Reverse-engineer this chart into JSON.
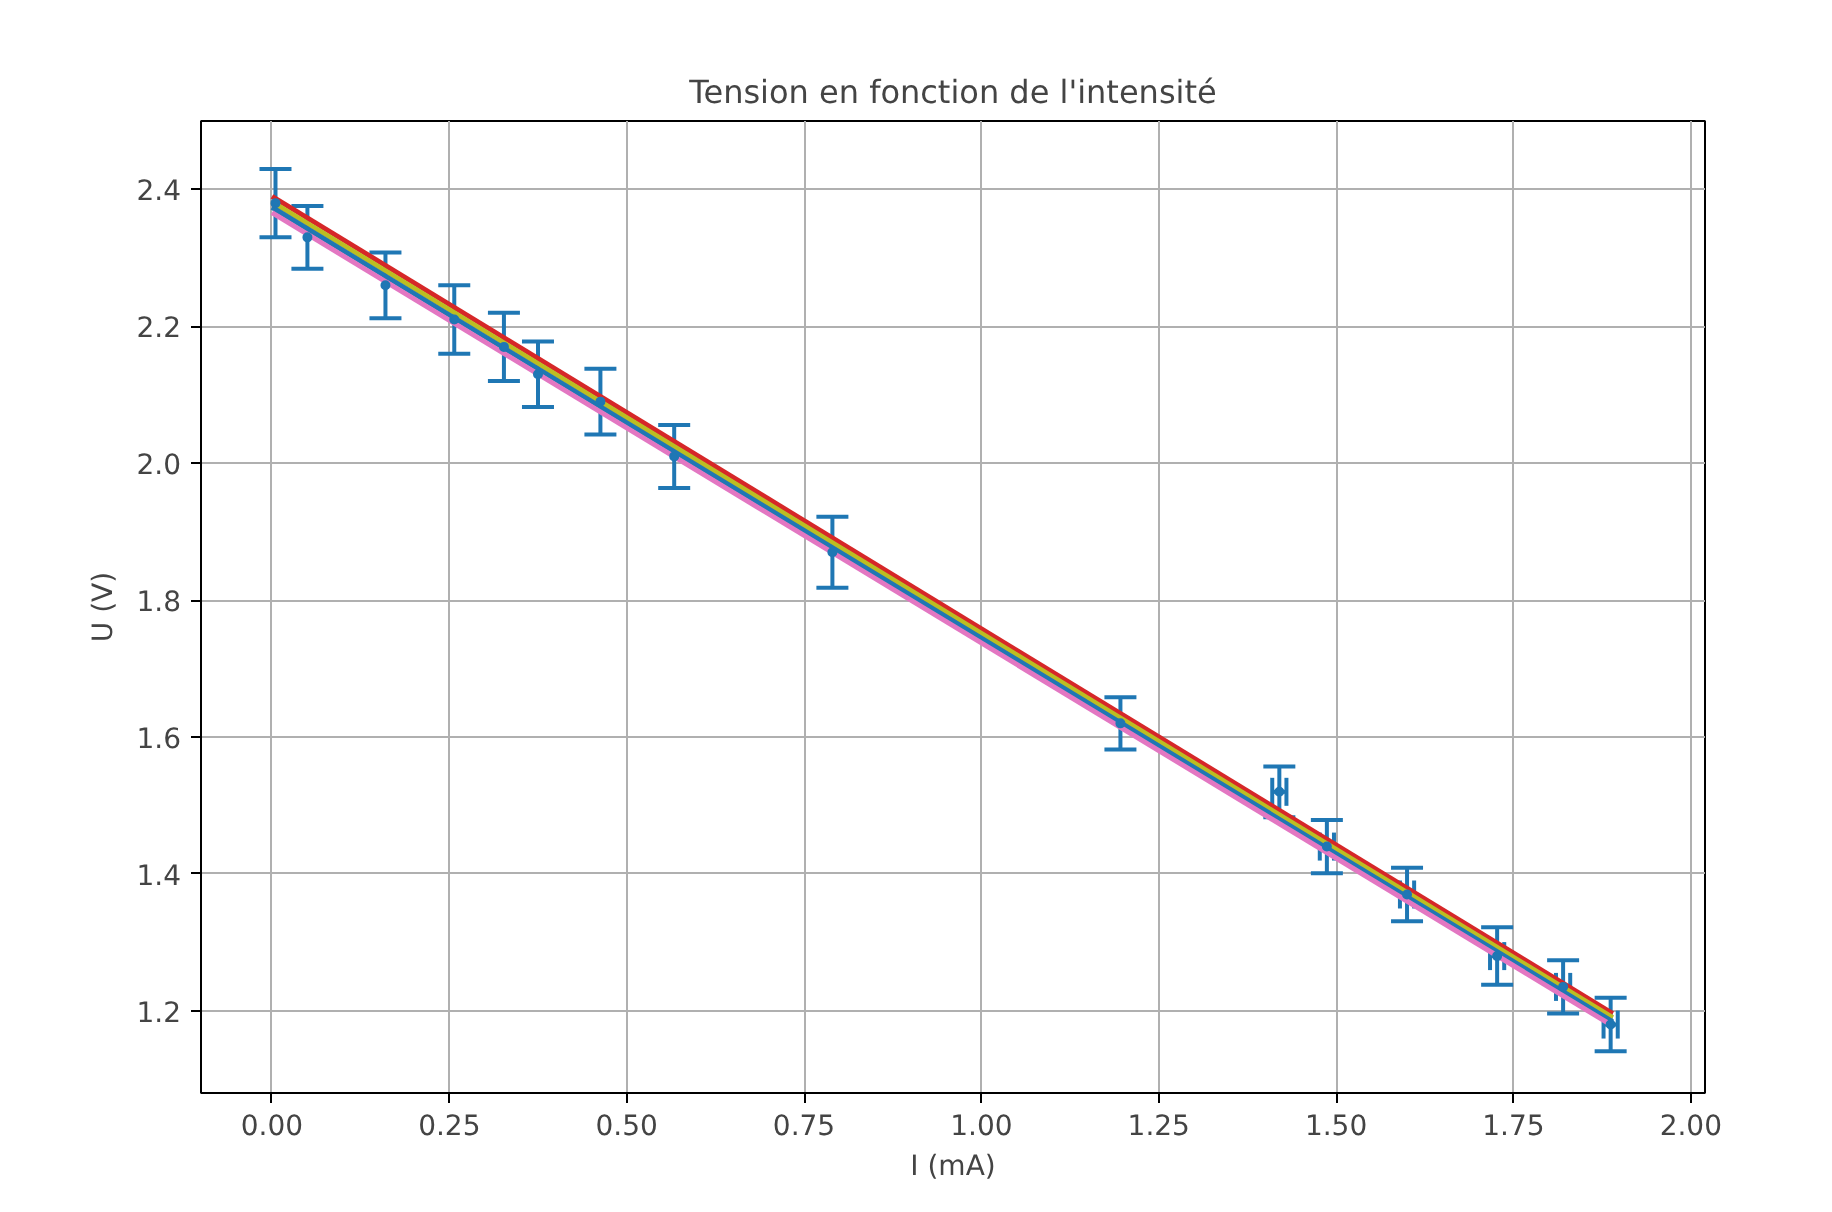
{
  "chart_data": {
    "type": "scatter",
    "title": "Tension en fonction de l'intensité",
    "xlabel": "I (mA)",
    "ylabel": "U (V)",
    "xlim": [
      -0.1,
      2.02
    ],
    "ylim": [
      1.08,
      2.5
    ],
    "xticks": [
      {
        "value": 0,
        "label": "0.00"
      },
      {
        "value": 0.25,
        "label": "0.25"
      },
      {
        "value": 0.5,
        "label": "0.50"
      },
      {
        "value": 0.75,
        "label": "0.75"
      },
      {
        "value": 1,
        "label": "1.00"
      },
      {
        "value": 1.25,
        "label": "1.25"
      },
      {
        "value": 1.5,
        "label": "1.50"
      },
      {
        "value": 1.75,
        "label": "1.75"
      },
      {
        "value": 2,
        "label": "2.00"
      }
    ],
    "yticks": [
      1.2,
      1.4,
      1.6,
      1.8,
      {
        "value": 2,
        "label": "2.0"
      },
      2.2,
      2.4
    ],
    "grid": true,
    "series": [
      {
        "type": "line",
        "color": "#d62728",
        "x": [
          0,
          1.89
        ],
        "values": [
          2.39,
          1.196
        ]
      },
      {
        "type": "line",
        "color": "#bcbd22",
        "x": [
          0,
          1.89
        ],
        "values": [
          2.382,
          1.19
        ]
      },
      {
        "type": "line",
        "color": "#1f77b4",
        "x": [
          0,
          1.89
        ],
        "values": [
          2.374,
          1.184
        ]
      },
      {
        "type": "line",
        "color": "#e377c2",
        "x": [
          0,
          1.89
        ],
        "values": [
          2.366,
          1.178
        ]
      },
      {
        "color": "#1f77b4",
        "marker": "circle",
        "x": [
          0.005,
          0.05,
          0.16,
          0.257,
          0.327,
          0.375,
          0.463,
          0.567,
          0.79,
          1.196,
          1.42,
          1.487,
          1.6,
          1.727,
          1.82,
          1.887
        ],
        "values": [
          2.38,
          2.33,
          2.26,
          2.21,
          2.17,
          2.13,
          2.09,
          2.01,
          1.87,
          1.62,
          1.52,
          1.44,
          1.37,
          1.28,
          1.235,
          1.18
        ],
        "errors": [
          0.05,
          0.046,
          0.048,
          0.05,
          0.05,
          0.048,
          0.048,
          0.046,
          0.052,
          0.038,
          0.037,
          0.039,
          0.039,
          0.042,
          0.039,
          0.039
        ],
        "xerrors": [
          null,
          null,
          null,
          null,
          null,
          null,
          null,
          null,
          null,
          null,
          0.01,
          0.01,
          0.01,
          0.01,
          0.01,
          0.01
        ]
      }
    ]
  }
}
